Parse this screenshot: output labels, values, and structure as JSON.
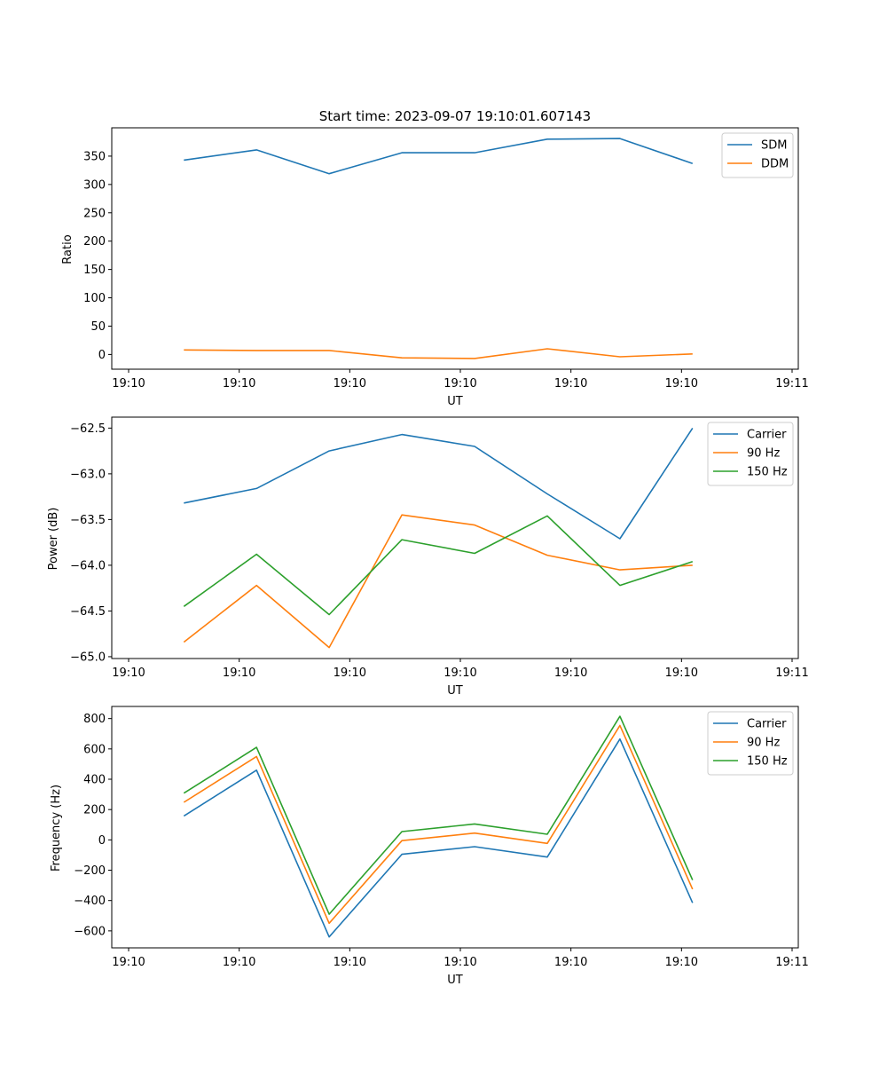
{
  "chart_data": [
    {
      "type": "line",
      "title": "Start time: 2023-09-07 19:10:01.607143",
      "xlabel": "UT",
      "ylabel": "Ratio",
      "x": [
        0.5,
        1.157,
        1.814,
        2.471,
        3.129,
        3.786,
        4.443,
        5.1
      ],
      "xlim": [
        0,
        6
      ],
      "xticks": [
        0,
        1,
        2,
        3,
        4,
        5,
        6
      ],
      "xtick_labels": [
        "19:10",
        "19:10",
        "19:10",
        "19:10",
        "19:10",
        "19:10",
        "19:11"
      ],
      "ylim": [
        -26,
        400
      ],
      "yticks": [
        0,
        50,
        100,
        150,
        200,
        250,
        300,
        350
      ],
      "ytick_labels": [
        "0",
        "50",
        "100",
        "150",
        "200",
        "250",
        "300",
        "350"
      ],
      "legend": "top-right",
      "series": [
        {
          "name": "SDM",
          "color": "#1f77b4",
          "values": [
            343,
            361,
            319,
            356,
            356,
            380,
            381,
            337
          ]
        },
        {
          "name": "DDM",
          "color": "#ff7f0e",
          "values": [
            8,
            7,
            7,
            -6,
            -7,
            10,
            -4,
            1
          ]
        }
      ]
    },
    {
      "type": "line",
      "title": "",
      "xlabel": "UT",
      "ylabel": "Power (dB)",
      "x": [
        0.5,
        1.157,
        1.814,
        2.471,
        3.129,
        3.786,
        4.443,
        5.1
      ],
      "xlim": [
        0,
        6
      ],
      "xticks": [
        0,
        1,
        2,
        3,
        4,
        5,
        6
      ],
      "xtick_labels": [
        "19:10",
        "19:10",
        "19:10",
        "19:10",
        "19:10",
        "19:10",
        "19:11"
      ],
      "ylim": [
        -65.02,
        -62.38
      ],
      "yticks": [
        -65.0,
        -64.5,
        -64.0,
        -63.5,
        -63.0,
        -62.5
      ],
      "ytick_labels": [
        "−65.0",
        "−64.5",
        "−64.0",
        "−63.5",
        "−63.0",
        "−62.5"
      ],
      "legend": "top-right",
      "series": [
        {
          "name": "Carrier",
          "color": "#1f77b4",
          "values": [
            -63.32,
            -63.16,
            -62.75,
            -62.57,
            -62.7,
            -63.22,
            -63.71,
            -62.5
          ]
        },
        {
          "name": "90 Hz",
          "color": "#ff7f0e",
          "values": [
            -64.84,
            -64.22,
            -64.9,
            -63.45,
            -63.56,
            -63.89,
            -64.05,
            -64.0
          ]
        },
        {
          "name": "150 Hz",
          "color": "#2ca02c",
          "values": [
            -64.45,
            -63.88,
            -64.54,
            -63.72,
            -63.87,
            -63.46,
            -64.22,
            -63.96
          ]
        }
      ]
    },
    {
      "type": "line",
      "title": "",
      "xlabel": "UT",
      "ylabel": "Frequency (Hz)",
      "x": [
        0.5,
        1.157,
        1.814,
        2.471,
        3.129,
        3.786,
        4.443,
        5.1
      ],
      "xlim": [
        0,
        6
      ],
      "xticks": [
        0,
        1,
        2,
        3,
        4,
        5,
        6
      ],
      "xtick_labels": [
        "19:10",
        "19:10",
        "19:10",
        "19:10",
        "19:10",
        "19:10",
        "19:11"
      ],
      "ylim": [
        -712,
        880
      ],
      "yticks": [
        -600,
        -400,
        -200,
        0,
        200,
        400,
        600,
        800
      ],
      "ytick_labels": [
        "−600",
        "−400",
        "−200",
        "0",
        "200",
        "400",
        "600",
        "800"
      ],
      "legend": "top-right",
      "series": [
        {
          "name": "Carrier",
          "color": "#1f77b4",
          "values": [
            158,
            460,
            -640,
            -95,
            -45,
            -113,
            665,
            -415
          ]
        },
        {
          "name": "90 Hz",
          "color": "#ff7f0e",
          "values": [
            248,
            550,
            -550,
            -5,
            45,
            -23,
            755,
            -325
          ]
        },
        {
          "name": "150 Hz",
          "color": "#2ca02c",
          "values": [
            308,
            610,
            -490,
            55,
            105,
            37,
            815,
            -265
          ]
        }
      ]
    }
  ]
}
